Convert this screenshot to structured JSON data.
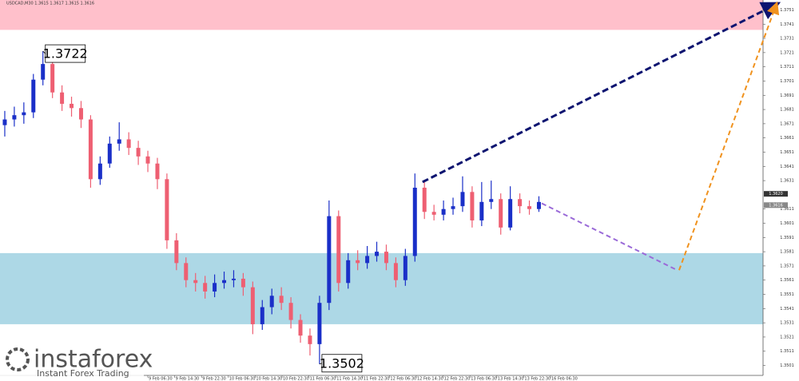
{
  "chart_data": {
    "type": "candlestick",
    "title": "USDCAD,M30  1.3615 1.3617 1.3615 1.3616",
    "open": [
      1.367,
      1.3674,
      1.3677,
      1.3679,
      1.3702,
      1.3713,
      1.3693,
      1.3685,
      1.3682,
      1.3674,
      1.3632,
      1.3643,
      1.3657,
      1.366,
      1.3654,
      1.3648,
      1.3643,
      1.3632,
      1.3589,
      1.3573,
      1.3561,
      1.3559,
      1.3553,
      1.3559,
      1.3561,
      1.3562,
      1.3556,
      1.353,
      1.3542,
      1.355,
      1.3545,
      1.3533,
      1.3522,
      1.3516,
      1.3545,
      1.3606,
      1.3559,
      1.3575,
      1.3573,
      1.3578,
      1.3581,
      1.3573,
      1.3561,
      1.3578,
      1.3626,
      1.3609,
      1.3607,
      1.3611,
      1.3613,
      1.3623,
      1.3603,
      1.3616,
      1.3618,
      1.3598,
      1.3618,
      1.3613,
      1.3611
    ],
    "high": [
      1.368,
      1.3683,
      1.3686,
      1.3706,
      1.3722,
      1.3717,
      1.3698,
      1.369,
      1.3687,
      1.3677,
      1.3648,
      1.3662,
      1.3672,
      1.3665,
      1.3659,
      1.3652,
      1.3647,
      1.3636,
      1.3594,
      1.3577,
      1.3566,
      1.3564,
      1.3565,
      1.3567,
      1.3568,
      1.3566,
      1.356,
      1.3547,
      1.3555,
      1.3556,
      1.3549,
      1.3537,
      1.3527,
      1.355,
      1.3617,
      1.361,
      1.358,
      1.3582,
      1.3585,
      1.3588,
      1.3586,
      1.3577,
      1.3583,
      1.3636,
      1.363,
      1.3614,
      1.3617,
      1.3619,
      1.3634,
      1.3627,
      1.363,
      1.3631,
      1.3622,
      1.3627,
      1.3622,
      1.3617,
      1.362
    ],
    "low": [
      1.3662,
      1.3669,
      1.3671,
      1.3675,
      1.3698,
      1.3689,
      1.368,
      1.3676,
      1.3668,
      1.3626,
      1.3628,
      1.364,
      1.3652,
      1.3649,
      1.3642,
      1.3637,
      1.3625,
      1.3583,
      1.3568,
      1.3556,
      1.3553,
      1.3548,
      1.3549,
      1.3555,
      1.3556,
      1.355,
      1.3523,
      1.3526,
      1.3537,
      1.354,
      1.3527,
      1.3517,
      1.3508,
      1.3502,
      1.354,
      1.3553,
      1.3555,
      1.3568,
      1.3569,
      1.3574,
      1.3568,
      1.3556,
      1.3557,
      1.3574,
      1.3604,
      1.3603,
      1.3603,
      1.3607,
      1.3609,
      1.3598,
      1.3599,
      1.3611,
      1.3593,
      1.3596,
      1.3608,
      1.3607,
      1.3609
    ],
    "close": [
      1.3674,
      1.3677,
      1.3679,
      1.3702,
      1.3713,
      1.3693,
      1.3685,
      1.3682,
      1.3674,
      1.3632,
      1.3643,
      1.3657,
      1.366,
      1.3654,
      1.3648,
      1.3643,
      1.3632,
      1.3589,
      1.3573,
      1.3561,
      1.3559,
      1.3553,
      1.3559,
      1.3561,
      1.3562,
      1.3556,
      1.353,
      1.3542,
      1.355,
      1.3545,
      1.3533,
      1.3522,
      1.3516,
      1.3545,
      1.3606,
      1.3559,
      1.3575,
      1.3573,
      1.3578,
      1.3581,
      1.3573,
      1.3561,
      1.3578,
      1.3626,
      1.3609,
      1.3607,
      1.3611,
      1.3613,
      1.3623,
      1.3603,
      1.3616,
      1.3618,
      1.3598,
      1.3618,
      1.3613,
      1.3611,
      1.3616
    ],
    "up_color": "#1a2fc8",
    "down_color": "#ee5f72",
    "xlim": [
      -0.5,
      79.5
    ],
    "ylim": [
      1.3494,
      1.3758
    ],
    "yticks": [
      1.3501,
      1.3511,
      1.3521,
      1.3531,
      1.3541,
      1.3551,
      1.3561,
      1.3571,
      1.3581,
      1.3591,
      1.3601,
      1.3611,
      1.3631,
      1.3641,
      1.3651,
      1.3661,
      1.3671,
      1.3681,
      1.3691,
      1.3701,
      1.3711,
      1.3721,
      1.3731,
      1.3741,
      1.3751
    ],
    "xtick_labels": [
      "9 Feb 06:30",
      "9 Feb 14:30",
      "9 Feb 22:30",
      "10 Feb 06:30",
      "10 Feb 14:30",
      "10 Feb 22:30",
      "11 Feb 06:30",
      "11 Feb 14:30",
      "11 Feb 22:30",
      "12 Feb 06:30",
      "12 Feb 14:30",
      "12 Feb 22:30",
      "13 Feb 06:30",
      "13 Feb 14:30",
      "13 Feb 22:30",
      "16 Feb 06:30"
    ],
    "zones": [
      {
        "from": 1.3737,
        "to": 1.3758,
        "color": "#ffc0cb"
      },
      {
        "from": 1.353,
        "to": 1.358,
        "color": "#add8e6"
      }
    ],
    "annotations": [
      {
        "value": 1.3722,
        "label": "1.3722",
        "side": "high"
      },
      {
        "value": 1.3502,
        "label": "1.3502",
        "side": "low"
      }
    ],
    "price_markers": [
      {
        "value": 1.362,
        "label": "1.3620",
        "color": "#333333"
      },
      {
        "value": 1.3616,
        "label": "1.3616",
        "color": "#888888"
      }
    ],
    "forecast": [
      {
        "color": "#0d1470",
        "arrow": true,
        "points": [
          {
            "x": 43.8,
            "y": 1.363
          },
          {
            "x": 80.9,
            "y": 1.3755
          }
        ]
      },
      {
        "color": "#9a6ad8",
        "arrow": false,
        "points": [
          {
            "x": 56.3,
            "y": 1.3615
          },
          {
            "x": 70.5,
            "y": 1.3568
          }
        ]
      },
      {
        "color": "#f0921e",
        "arrow": true,
        "points": [
          {
            "x": 70.7,
            "y": 1.3568
          },
          {
            "x": 80.9,
            "y": 1.3755
          }
        ]
      }
    ]
  },
  "watermark": {
    "name": "instaforex",
    "tagline": "Instant Forex Trading"
  }
}
